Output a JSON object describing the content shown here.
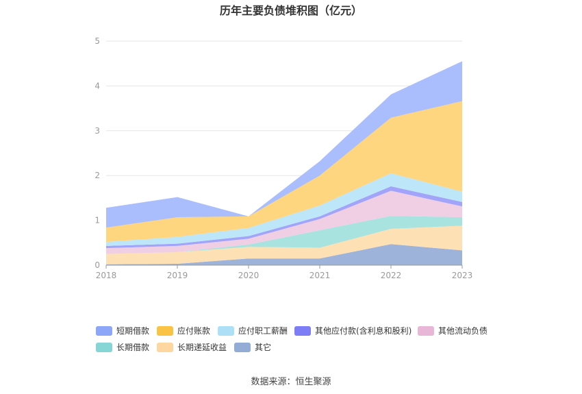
{
  "title": "历年主要负债堆积图（亿元）",
  "source": "数据来源：恒生聚源",
  "chart_data": {
    "type": "area",
    "stacked": true,
    "categories": [
      "2018",
      "2019",
      "2020",
      "2021",
      "2022",
      "2023"
    ],
    "ylim": [
      0,
      5
    ],
    "yticks": [
      "0",
      "1",
      "2",
      "3",
      "4",
      "5"
    ],
    "grid": true,
    "legend_position": "bottom",
    "series": [
      {
        "name": "其它",
        "color": "#9db3d9",
        "values": [
          0.02,
          0.03,
          0.15,
          0.15,
          0.47,
          0.33
        ]
      },
      {
        "name": "长期递延收益",
        "color": "#fde0b4",
        "values": [
          0.23,
          0.26,
          0.26,
          0.24,
          0.34,
          0.55
        ]
      },
      {
        "name": "长期借款",
        "color": "#a8e3e0",
        "values": [
          0.0,
          0.0,
          0.05,
          0.39,
          0.29,
          0.19
        ]
      },
      {
        "name": "其他流动负债",
        "color": "#f0cfe4",
        "values": [
          0.13,
          0.14,
          0.13,
          0.25,
          0.56,
          0.24
        ]
      },
      {
        "name": "其他应付款(含利息和股利)",
        "color": "#a1a4f8",
        "values": [
          0.05,
          0.05,
          0.06,
          0.06,
          0.1,
          0.1
        ]
      },
      {
        "name": "应付职工薪酬",
        "color": "#bee6f9",
        "values": [
          0.09,
          0.15,
          0.18,
          0.24,
          0.29,
          0.23
        ]
      },
      {
        "name": "应付账款",
        "color": "#ffd680",
        "values": [
          0.32,
          0.44,
          0.26,
          0.67,
          1.24,
          2.02
        ]
      },
      {
        "name": "短期借款",
        "color": "#aabdfc",
        "values": [
          0.44,
          0.45,
          0.0,
          0.32,
          0.52,
          0.89
        ]
      }
    ]
  },
  "legend": [
    {
      "label": "短期借款",
      "color": "#8ea6f7"
    },
    {
      "label": "应付账款",
      "color": "#fbc343"
    },
    {
      "label": "应付职工薪酬",
      "color": "#ade0f6"
    },
    {
      "label": "其他应付款(含利息和股利)",
      "color": "#7d7ef5"
    },
    {
      "label": "其他流动负债",
      "color": "#e8b7d8"
    },
    {
      "label": "长期借款",
      "color": "#86d6d6"
    },
    {
      "label": "长期递延收益",
      "color": "#fdd6a0"
    },
    {
      "label": "其它",
      "color": "#92acd6"
    }
  ]
}
